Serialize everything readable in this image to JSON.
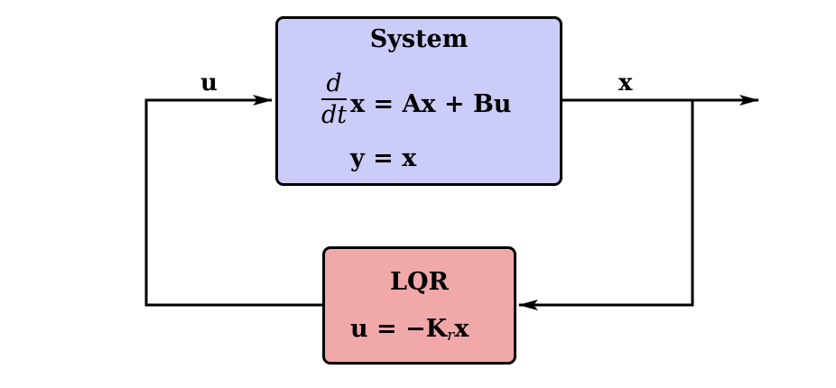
{
  "system": {
    "title": "System",
    "frac_num": "d",
    "frac_den": "dt",
    "state_eq": "x = Ax + Bu",
    "output_eq": "y = x"
  },
  "controller": {
    "title": "LQR",
    "law_lhs": "u = −K",
    "law_sub": "r",
    "law_rhs": "x"
  },
  "signals": {
    "input": "u",
    "output": "x"
  },
  "colors": {
    "system_fill": "#ccccf8",
    "controller_fill": "#f1a8a8",
    "lines": "#000000"
  }
}
